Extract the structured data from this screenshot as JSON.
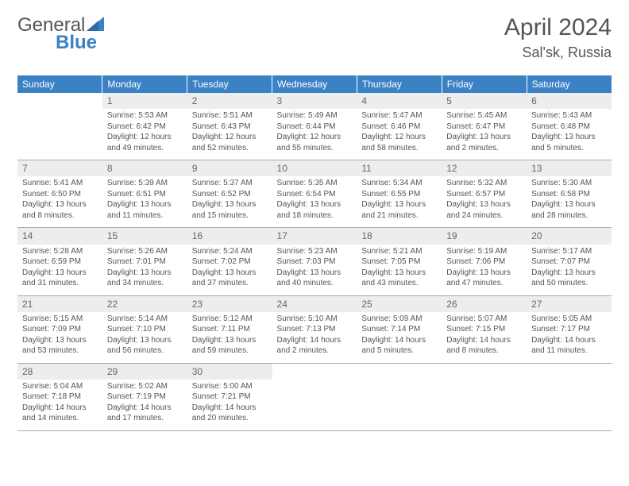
{
  "brand": {
    "name1": "General",
    "name2": "Blue"
  },
  "title": "April 2024",
  "location": "Sal'sk, Russia",
  "colors": {
    "header_bg": "#3b82c4",
    "header_fg": "#ffffff",
    "daynum_bg": "#eceded",
    "text": "#555555",
    "rule": "#aaaaaa"
  },
  "weekdays": [
    "Sunday",
    "Monday",
    "Tuesday",
    "Wednesday",
    "Thursday",
    "Friday",
    "Saturday"
  ],
  "weeks": [
    [
      null,
      {
        "n": "1",
        "sunrise": "5:53 AM",
        "sunset": "6:42 PM",
        "daylight": "12 hours and 49 minutes."
      },
      {
        "n": "2",
        "sunrise": "5:51 AM",
        "sunset": "6:43 PM",
        "daylight": "12 hours and 52 minutes."
      },
      {
        "n": "3",
        "sunrise": "5:49 AM",
        "sunset": "6:44 PM",
        "daylight": "12 hours and 55 minutes."
      },
      {
        "n": "4",
        "sunrise": "5:47 AM",
        "sunset": "6:46 PM",
        "daylight": "12 hours and 58 minutes."
      },
      {
        "n": "5",
        "sunrise": "5:45 AM",
        "sunset": "6:47 PM",
        "daylight": "13 hours and 2 minutes."
      },
      {
        "n": "6",
        "sunrise": "5:43 AM",
        "sunset": "6:48 PM",
        "daylight": "13 hours and 5 minutes."
      }
    ],
    [
      {
        "n": "7",
        "sunrise": "5:41 AM",
        "sunset": "6:50 PM",
        "daylight": "13 hours and 8 minutes."
      },
      {
        "n": "8",
        "sunrise": "5:39 AM",
        "sunset": "6:51 PM",
        "daylight": "13 hours and 11 minutes."
      },
      {
        "n": "9",
        "sunrise": "5:37 AM",
        "sunset": "6:52 PM",
        "daylight": "13 hours and 15 minutes."
      },
      {
        "n": "10",
        "sunrise": "5:35 AM",
        "sunset": "6:54 PM",
        "daylight": "13 hours and 18 minutes."
      },
      {
        "n": "11",
        "sunrise": "5:34 AM",
        "sunset": "6:55 PM",
        "daylight": "13 hours and 21 minutes."
      },
      {
        "n": "12",
        "sunrise": "5:32 AM",
        "sunset": "6:57 PM",
        "daylight": "13 hours and 24 minutes."
      },
      {
        "n": "13",
        "sunrise": "5:30 AM",
        "sunset": "6:58 PM",
        "daylight": "13 hours and 28 minutes."
      }
    ],
    [
      {
        "n": "14",
        "sunrise": "5:28 AM",
        "sunset": "6:59 PM",
        "daylight": "13 hours and 31 minutes."
      },
      {
        "n": "15",
        "sunrise": "5:26 AM",
        "sunset": "7:01 PM",
        "daylight": "13 hours and 34 minutes."
      },
      {
        "n": "16",
        "sunrise": "5:24 AM",
        "sunset": "7:02 PM",
        "daylight": "13 hours and 37 minutes."
      },
      {
        "n": "17",
        "sunrise": "5:23 AM",
        "sunset": "7:03 PM",
        "daylight": "13 hours and 40 minutes."
      },
      {
        "n": "18",
        "sunrise": "5:21 AM",
        "sunset": "7:05 PM",
        "daylight": "13 hours and 43 minutes."
      },
      {
        "n": "19",
        "sunrise": "5:19 AM",
        "sunset": "7:06 PM",
        "daylight": "13 hours and 47 minutes."
      },
      {
        "n": "20",
        "sunrise": "5:17 AM",
        "sunset": "7:07 PM",
        "daylight": "13 hours and 50 minutes."
      }
    ],
    [
      {
        "n": "21",
        "sunrise": "5:15 AM",
        "sunset": "7:09 PM",
        "daylight": "13 hours and 53 minutes."
      },
      {
        "n": "22",
        "sunrise": "5:14 AM",
        "sunset": "7:10 PM",
        "daylight": "13 hours and 56 minutes."
      },
      {
        "n": "23",
        "sunrise": "5:12 AM",
        "sunset": "7:11 PM",
        "daylight": "13 hours and 59 minutes."
      },
      {
        "n": "24",
        "sunrise": "5:10 AM",
        "sunset": "7:13 PM",
        "daylight": "14 hours and 2 minutes."
      },
      {
        "n": "25",
        "sunrise": "5:09 AM",
        "sunset": "7:14 PM",
        "daylight": "14 hours and 5 minutes."
      },
      {
        "n": "26",
        "sunrise": "5:07 AM",
        "sunset": "7:15 PM",
        "daylight": "14 hours and 8 minutes."
      },
      {
        "n": "27",
        "sunrise": "5:05 AM",
        "sunset": "7:17 PM",
        "daylight": "14 hours and 11 minutes."
      }
    ],
    [
      {
        "n": "28",
        "sunrise": "5:04 AM",
        "sunset": "7:18 PM",
        "daylight": "14 hours and 14 minutes."
      },
      {
        "n": "29",
        "sunrise": "5:02 AM",
        "sunset": "7:19 PM",
        "daylight": "14 hours and 17 minutes."
      },
      {
        "n": "30",
        "sunrise": "5:00 AM",
        "sunset": "7:21 PM",
        "daylight": "14 hours and 20 minutes."
      },
      null,
      null,
      null,
      null
    ]
  ],
  "labels": {
    "sunrise": "Sunrise:",
    "sunset": "Sunset:",
    "daylight": "Daylight:"
  }
}
